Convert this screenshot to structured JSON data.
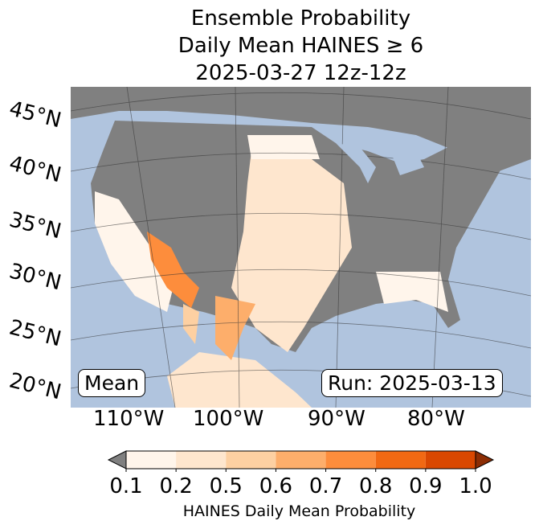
{
  "title": {
    "line1": "Ensemble Probability",
    "line2": "Daily Mean HAINES ≥ 6",
    "line3": "2025-03-27 12z-12z"
  },
  "map": {
    "ocean_color": "#b0c4de",
    "land_below_threshold_color": "#808080",
    "lat_labels": [
      "45°N",
      "40°N",
      "35°N",
      "30°N",
      "25°N",
      "20°N"
    ],
    "lon_labels": [
      "110°W",
      "100°W",
      "90°W",
      "80°W"
    ],
    "stat_label": "Mean",
    "run_label": "Run: 2025-03-13"
  },
  "colorbar": {
    "ticks": [
      "0.1",
      "0.2",
      "0.5",
      "0.6",
      "0.7",
      "0.8",
      "0.9",
      "1.0"
    ],
    "colors": [
      "#fff5eb",
      "#fee6ce",
      "#fdd0a2",
      "#fdae6b",
      "#fd8d3c",
      "#f16913",
      "#d94801"
    ],
    "under_color": "#808080",
    "over_color": "#8c2d04",
    "label": "HAINES Daily Mean Probability"
  }
}
